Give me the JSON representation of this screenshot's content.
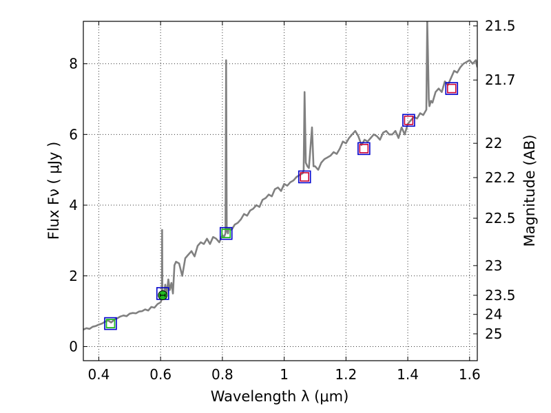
{
  "chart_data": {
    "type": "line",
    "title": "",
    "xlabel": "Wavelength  λ (μm)",
    "ylabel_left": "Flux  Fν  ( μJy )",
    "ylabel_right": "Magnitude (AB)",
    "xlim": [
      0.35,
      1.625
    ],
    "ylim": [
      -0.4,
      9.2
    ],
    "x_ticks": [
      0.4,
      0.6,
      0.8,
      1.0,
      1.2,
      1.4,
      1.6
    ],
    "x_tick_labels": [
      "0.4",
      "0.6",
      "0.8",
      "1",
      "1.2",
      "1.4",
      "1.6"
    ],
    "y_ticks": [
      0,
      2,
      4,
      6,
      8
    ],
    "y_tick_labels": [
      "0",
      "2",
      "4",
      "6",
      "8"
    ],
    "right_ticks": [
      {
        "flux": 9.07,
        "label": "21.5"
      },
      {
        "flux": 7.54,
        "label": "21.7"
      },
      {
        "flux": 5.75,
        "label": "22"
      },
      {
        "flux": 4.78,
        "label": "22.2"
      },
      {
        "flux": 3.63,
        "label": "22.5"
      },
      {
        "flux": 2.29,
        "label": "23"
      },
      {
        "flux": 1.45,
        "label": "23.5"
      },
      {
        "flux": 0.91,
        "label": "24"
      },
      {
        "flux": 0.36,
        "label": "25"
      }
    ],
    "grid": true,
    "colors": {
      "spectrum": "#808080",
      "model_square": "#0000cc",
      "observed_square": "#cc0033",
      "green_point": "#22bb22",
      "spike_line": "#999999"
    },
    "series": [
      {
        "name": "model spectrum",
        "x": [
          0.35,
          0.36,
          0.37,
          0.38,
          0.39,
          0.4,
          0.41,
          0.42,
          0.43,
          0.44,
          0.45,
          0.46,
          0.47,
          0.48,
          0.49,
          0.5,
          0.51,
          0.52,
          0.53,
          0.54,
          0.55,
          0.56,
          0.57,
          0.58,
          0.59,
          0.6,
          0.604,
          0.605,
          0.606,
          0.61,
          0.615,
          0.62,
          0.625,
          0.63,
          0.635,
          0.64,
          0.645,
          0.65,
          0.66,
          0.67,
          0.68,
          0.69,
          0.7,
          0.71,
          0.72,
          0.73,
          0.74,
          0.75,
          0.76,
          0.77,
          0.78,
          0.79,
          0.8,
          0.805,
          0.81,
          0.812,
          0.814,
          0.816,
          0.818,
          0.82,
          0.83,
          0.84,
          0.85,
          0.86,
          0.87,
          0.88,
          0.89,
          0.9,
          0.91,
          0.92,
          0.93,
          0.94,
          0.95,
          0.96,
          0.97,
          0.98,
          0.99,
          1.0,
          1.01,
          1.02,
          1.03,
          1.04,
          1.05,
          1.06,
          1.063,
          1.066,
          1.07,
          1.075,
          1.08,
          1.09,
          1.095,
          1.1,
          1.11,
          1.12,
          1.13,
          1.14,
          1.15,
          1.16,
          1.17,
          1.18,
          1.19,
          1.2,
          1.21,
          1.22,
          1.23,
          1.24,
          1.25,
          1.26,
          1.27,
          1.28,
          1.29,
          1.3,
          1.31,
          1.32,
          1.33,
          1.34,
          1.35,
          1.36,
          1.37,
          1.38,
          1.39,
          1.4,
          1.41,
          1.42,
          1.43,
          1.44,
          1.45,
          1.46,
          1.463,
          1.465,
          1.468,
          1.47,
          1.475,
          1.48,
          1.49,
          1.5,
          1.51,
          1.52,
          1.53,
          1.54,
          1.55,
          1.56,
          1.57,
          1.58,
          1.59,
          1.6,
          1.61,
          1.62,
          1.625
        ],
        "values": [
          0.48,
          0.52,
          0.5,
          0.56,
          0.58,
          0.62,
          0.65,
          0.7,
          0.74,
          0.68,
          0.76,
          0.8,
          0.85,
          0.88,
          0.86,
          0.93,
          0.95,
          0.94,
          0.99,
          1.0,
          1.05,
          1.02,
          1.12,
          1.1,
          1.2,
          1.25,
          1.35,
          3.3,
          1.4,
          1.42,
          1.75,
          1.5,
          1.9,
          1.6,
          1.8,
          1.5,
          2.3,
          2.4,
          2.35,
          2.0,
          2.5,
          2.6,
          2.7,
          2.55,
          2.85,
          2.95,
          2.9,
          3.05,
          2.9,
          3.1,
          3.05,
          2.95,
          3.15,
          3.1,
          3.2,
          8.1,
          3.25,
          3.3,
          3.2,
          3.35,
          3.3,
          3.45,
          3.5,
          3.6,
          3.75,
          3.7,
          3.85,
          3.9,
          4.0,
          3.95,
          4.15,
          4.2,
          4.3,
          4.25,
          4.45,
          4.5,
          4.4,
          4.6,
          4.55,
          4.65,
          4.7,
          4.8,
          4.85,
          4.9,
          5.0,
          7.2,
          5.2,
          5.1,
          5.05,
          6.2,
          5.1,
          5.1,
          5.0,
          5.2,
          5.3,
          5.35,
          5.4,
          5.5,
          5.45,
          5.6,
          5.8,
          5.75,
          5.9,
          6.0,
          6.1,
          5.95,
          5.7,
          5.85,
          5.8,
          5.9,
          6.0,
          5.95,
          5.85,
          6.05,
          6.1,
          6.0,
          6.0,
          6.1,
          5.9,
          6.2,
          6.0,
          6.3,
          6.4,
          6.5,
          6.45,
          6.6,
          6.55,
          6.7,
          9.2,
          8.4,
          7.0,
          6.8,
          6.95,
          6.9,
          7.2,
          7.3,
          7.2,
          7.5,
          7.4,
          7.6,
          7.8,
          7.75,
          7.9,
          8.0,
          8.05,
          8.1,
          8.0,
          8.1,
          7.9
        ]
      },
      {
        "name": "model photometry (blue squares)",
        "x": [
          0.438,
          0.607,
          0.812,
          1.066,
          1.258,
          1.403,
          1.542
        ],
        "values": [
          0.65,
          1.5,
          3.2,
          4.8,
          5.6,
          6.4,
          7.3
        ]
      },
      {
        "name": "observed photometry (red squares)",
        "x": [
          1.066,
          1.258,
          1.403,
          1.542
        ],
        "values": [
          4.8,
          5.6,
          6.4,
          7.3
        ]
      },
      {
        "name": "observed photometry (green point)",
        "x": [
          0.607
        ],
        "values": [
          1.45
        ]
      },
      {
        "name": "green square markers",
        "x": [
          0.438,
          0.812
        ],
        "values": [
          0.65,
          3.2
        ]
      }
    ]
  }
}
